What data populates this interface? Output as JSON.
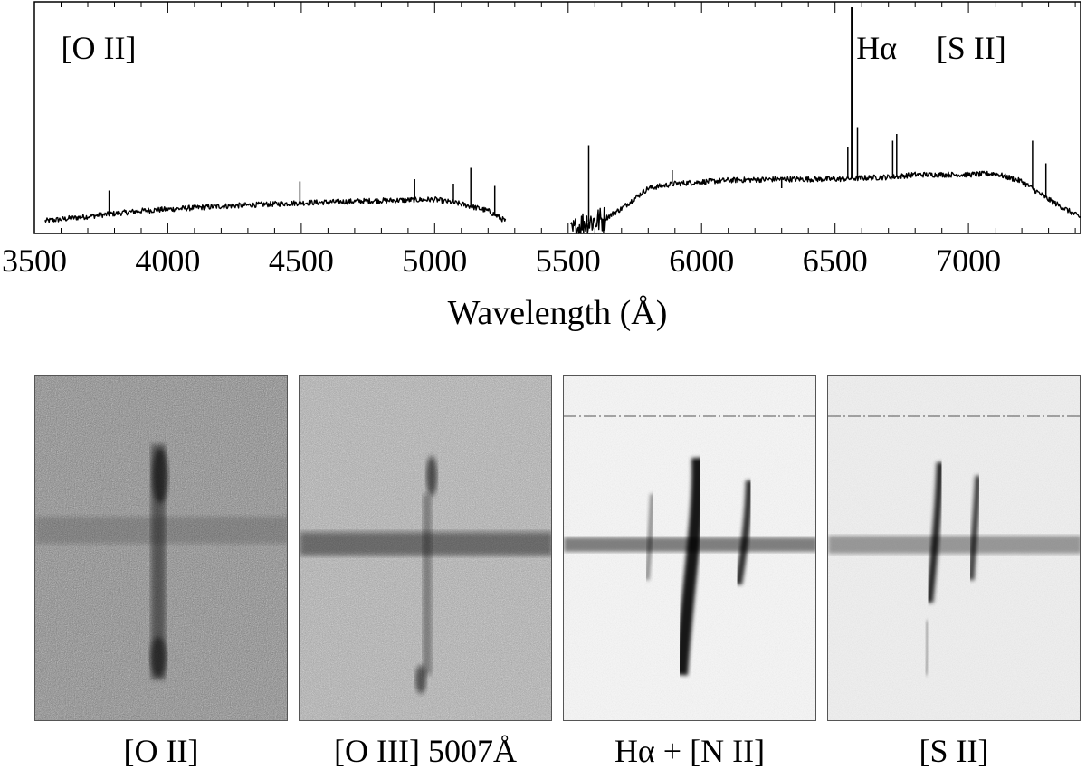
{
  "chart_data": {
    "type": "line",
    "xlabel": "Wavelength (Å)",
    "ylabel": "",
    "xlim": [
      3500,
      7420
    ],
    "ylim": [
      0,
      1
    ],
    "x_ticks": [
      3500,
      4000,
      4500,
      5000,
      5500,
      6000,
      6500,
      7000
    ],
    "annotations": [
      {
        "text": "[O II]",
        "x": 3600,
        "y": 0.91
      },
      {
        "text": "Hα",
        "x": 6580,
        "y": 0.91
      },
      {
        "text": "[S II]",
        "x": 6880,
        "y": 0.91
      }
    ],
    "series": [
      {
        "segments": [
          {
            "continuum": [
              [
                3540,
                0.055
              ],
              [
                3700,
                0.075
              ],
              [
                3900,
                0.1
              ],
              [
                4200,
                0.12
              ],
              [
                4500,
                0.135
              ],
              [
                4800,
                0.145
              ],
              [
                5000,
                0.15
              ],
              [
                5100,
                0.13
              ],
              [
                5200,
                0.1
              ],
              [
                5265,
                0.055
              ]
            ],
            "lines": [
              [
                3780,
                0.19
              ],
              [
                4495,
                0.23
              ],
              [
                4925,
                0.24
              ],
              [
                5070,
                0.22
              ],
              [
                5135,
                0.29
              ],
              [
                5225,
                0.21
              ]
            ]
          },
          {
            "continuum": [
              [
                5510,
                0.0
              ],
              [
                5560,
                0.05
              ],
              [
                5630,
                0.06
              ],
              [
                5700,
                0.11
              ],
              [
                5800,
                0.2
              ],
              [
                5900,
                0.22
              ],
              [
                6100,
                0.235
              ],
              [
                6300,
                0.24
              ],
              [
                6500,
                0.24
              ],
              [
                6600,
                0.245
              ],
              [
                6720,
                0.25
              ],
              [
                6800,
                0.26
              ],
              [
                7000,
                0.26
              ],
              [
                7100,
                0.265
              ],
              [
                7200,
                0.23
              ],
              [
                7300,
                0.15
              ],
              [
                7420,
                0.07
              ]
            ],
            "lines": [
              [
                5577,
                0.39
              ],
              [
                5890,
                0.28
              ],
              [
                6300,
                0.2
              ],
              [
                6548,
                0.38
              ],
              [
                6563,
                1.0
              ],
              [
                6584,
                0.47
              ],
              [
                6716,
                0.41
              ],
              [
                6731,
                0.44
              ],
              [
                7240,
                0.41
              ],
              [
                7290,
                0.31
              ]
            ]
          }
        ]
      }
    ]
  },
  "panels": [
    {
      "label": "[O II]"
    },
    {
      "label": "[O III] 5007Å"
    },
    {
      "label": "Hα + [N II]"
    },
    {
      "label": "[S II]"
    }
  ]
}
